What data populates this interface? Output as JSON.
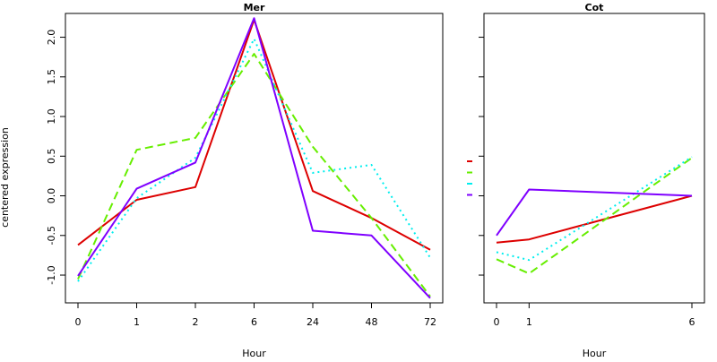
{
  "figure": {
    "ylabel": "centered expression"
  },
  "legend_colors": [
    "#dd0000",
    "#66ee00",
    "#00eeee",
    "#7f00ff"
  ],
  "chart_data": [
    {
      "type": "line",
      "title": "Mer",
      "xlabel": "Hour",
      "ylabel": "centered expression",
      "categories": [
        "0",
        "1",
        "2",
        "6",
        "24",
        "48",
        "72"
      ],
      "ylim": [
        -1.35,
        2.3
      ],
      "yticks": [
        -1.0,
        -0.5,
        0.0,
        0.5,
        1.0,
        1.5,
        2.0
      ],
      "ytick_labels": [
        "-1.0",
        "-0.5",
        "0.0",
        "0.5",
        "1.0",
        "1.5",
        "2.0"
      ],
      "grid": false,
      "series": [
        {
          "color": "#dd0000",
          "dash": "solid",
          "values": [
            -0.62,
            -0.05,
            0.11,
            2.22,
            0.06,
            -0.28,
            -0.68
          ]
        },
        {
          "color": "#66ee00",
          "dash": "dashed",
          "values": [
            -1.05,
            0.58,
            0.73,
            1.79,
            0.62,
            -0.28,
            -1.27
          ]
        },
        {
          "color": "#00eeee",
          "dash": "dotted",
          "values": [
            -1.08,
            -0.03,
            0.48,
            1.98,
            0.29,
            0.39,
            -0.78
          ]
        },
        {
          "color": "#7f00ff",
          "dash": "solid",
          "values": [
            -1.01,
            0.09,
            0.42,
            2.24,
            -0.44,
            -0.5,
            -1.29
          ]
        }
      ]
    },
    {
      "type": "line",
      "title": "Cot",
      "xlabel": "Hour",
      "categories": [
        "0",
        "1",
        "6"
      ],
      "ylim": [
        -1.35,
        2.3
      ],
      "yticks": [
        -1.0,
        -0.5,
        0.0,
        0.5,
        1.0,
        1.5,
        2.0
      ],
      "ytick_labels": [],
      "grid": false,
      "series": [
        {
          "color": "#dd0000",
          "dash": "solid",
          "values": [
            -0.59,
            -0.55,
            0.0
          ]
        },
        {
          "color": "#66ee00",
          "dash": "dashed",
          "values": [
            -0.8,
            -0.98,
            0.48
          ]
        },
        {
          "color": "#00eeee",
          "dash": "dotted",
          "values": [
            -0.71,
            -0.81,
            0.49
          ]
        },
        {
          "color": "#7f00ff",
          "dash": "solid",
          "values": [
            -0.5,
            0.08,
            0.0
          ]
        }
      ]
    }
  ]
}
